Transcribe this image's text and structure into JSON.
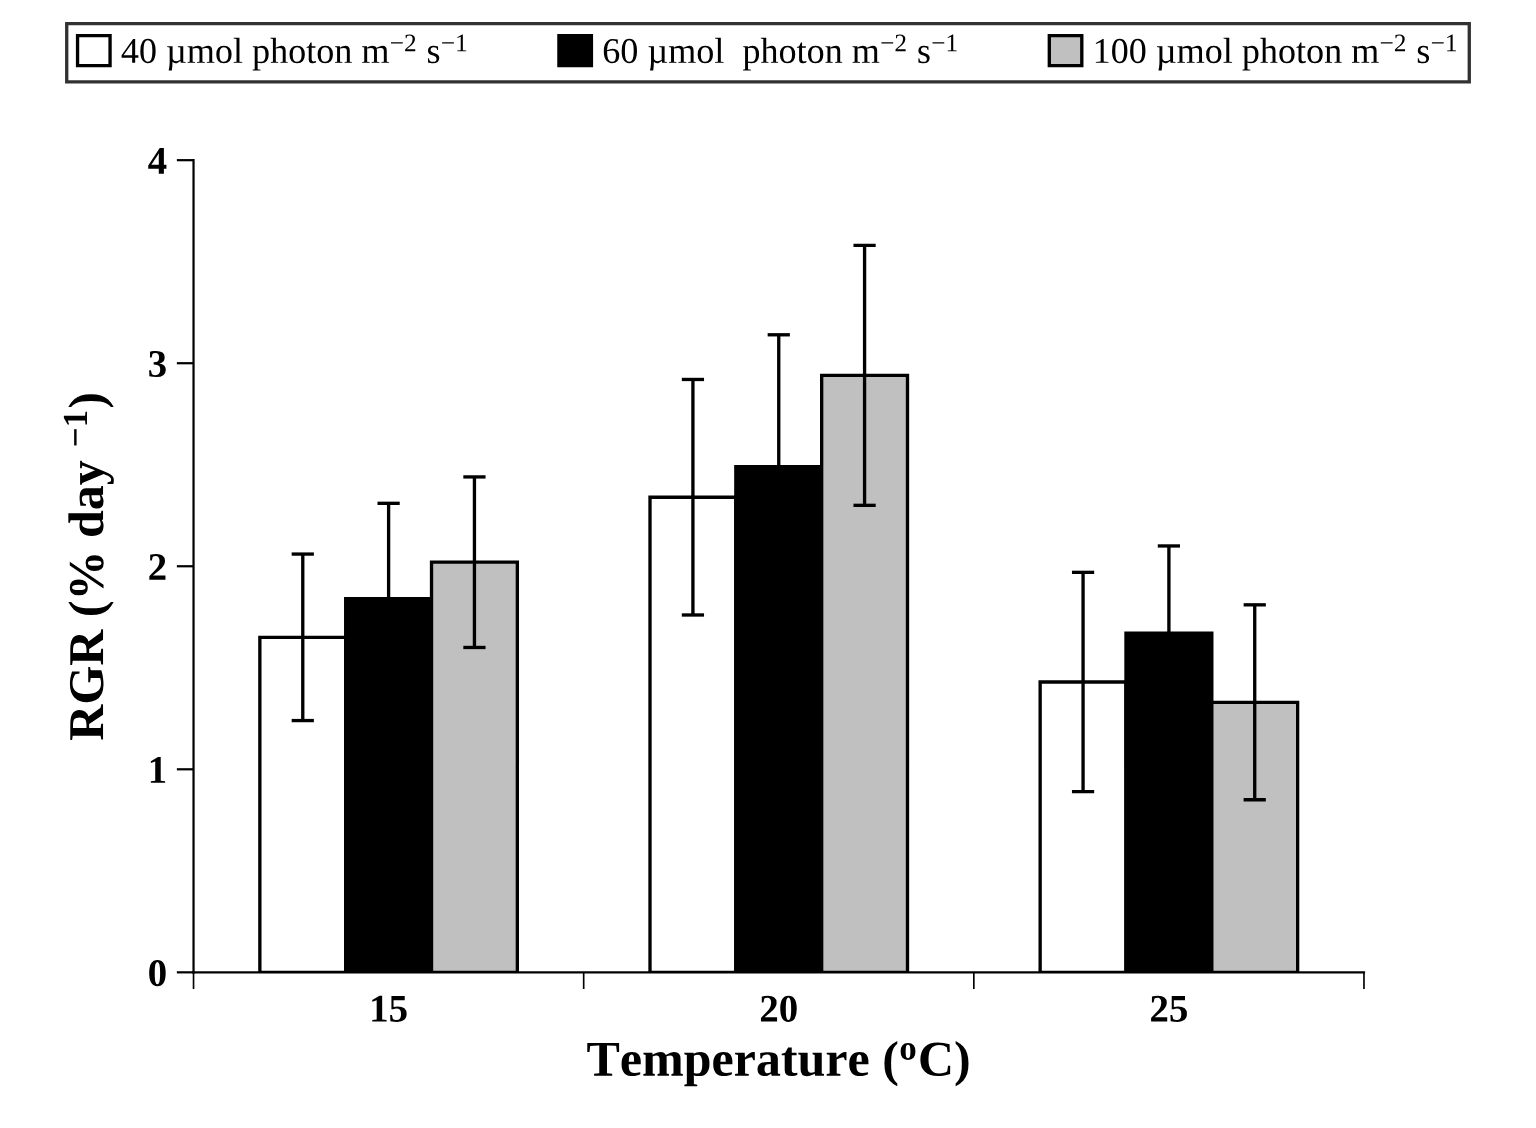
{
  "chart_data": {
    "type": "bar",
    "xlabel": "Temperature ($^{o}$C)",
    "ylabel": "RGR (% day $^{−1}$)",
    "categories": [
      "15",
      "20",
      "25"
    ],
    "series": [
      {
        "name": "40 µmol photon m$^{−2}$ s$^{−1}$",
        "color": "#ffffff",
        "values": [
          1.65,
          2.34,
          1.43
        ],
        "errors": [
          0.41,
          0.58,
          0.54
        ]
      },
      {
        "name": "60 µmol  photon m$^{−2}$ s$^{−1}$",
        "color": "#000000",
        "values": [
          1.84,
          2.49,
          1.67
        ],
        "errors": [
          0.47,
          0.65,
          0.43
        ]
      },
      {
        "name": "100 µmol photon m$^{−2}$ s$^{−1}$",
        "color": "#c0c0c0",
        "values": [
          2.02,
          2.94,
          1.33
        ],
        "errors": [
          0.42,
          0.64,
          0.48
        ]
      }
    ],
    "ylim": [
      0,
      4
    ],
    "yticks": [
      0,
      1,
      2,
      3,
      4
    ],
    "grid": false,
    "legend": "top"
  }
}
